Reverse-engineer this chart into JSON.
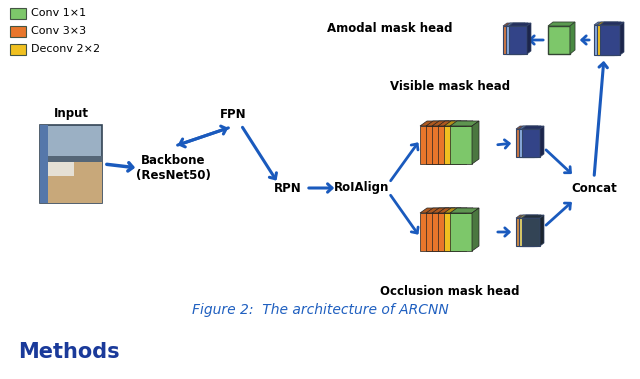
{
  "bg_color": "#ffffff",
  "arrow_color": "#1a5abd",
  "label_fontsize": 8.5,
  "title": "Figure 2:  The architecture of ARCNN",
  "title_color": "#2060c0",
  "title_fontsize": 10,
  "methods_text": "Methods",
  "methods_color": "#1a3a9a",
  "methods_fontsize": 15,
  "conv1x1_color": "#7dc76a",
  "conv3x3_color": "#e8762b",
  "deconv2x2_color": "#f0c020",
  "legend_labels": [
    "Conv 1×1",
    "Conv 3×3",
    "Deconv 2×2"
  ],
  "legend_colors": [
    "#7dc76a",
    "#e8762b",
    "#f0c020"
  ]
}
